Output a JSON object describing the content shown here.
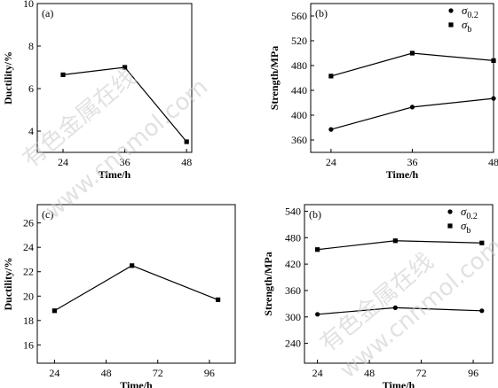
{
  "watermark": {
    "lines": [
      "有色金属在线",
      "www.cnnmol.com"
    ]
  },
  "chart_data": [
    {
      "panel_label": "(a)",
      "type": "line",
      "xlabel": "Time/h",
      "ylabel": "Ductility/%",
      "x": [
        24,
        36,
        48
      ],
      "xlim": [
        19,
        49
      ],
      "ylim": [
        3,
        10
      ],
      "xticks": [
        24,
        36,
        48
      ],
      "yticks": [
        4,
        6,
        8,
        10
      ],
      "legend": null,
      "series": [
        {
          "name": "",
          "marker": "square",
          "values": [
            6.65,
            7.0,
            3.5
          ]
        }
      ]
    },
    {
      "panel_label": "(b)",
      "type": "line",
      "xlabel": "Time/h",
      "ylabel": "Strength/MPa",
      "x": [
        24,
        36,
        48
      ],
      "xlim": [
        21,
        48
      ],
      "ylim": [
        340,
        580
      ],
      "xticks": [
        24,
        36,
        48
      ],
      "yticks": [
        360,
        400,
        440,
        480,
        520,
        560
      ],
      "legend": {
        "position": "top-right",
        "entries": [
          {
            "sym": "σ",
            "sub": "0.2",
            "marker": "circle"
          },
          {
            "sym": "σ",
            "sub": "b",
            "marker": "square"
          }
        ]
      },
      "series": [
        {
          "name": "σ0.2",
          "marker": "circle",
          "values": [
            377,
            413,
            427
          ]
        },
        {
          "name": "σb",
          "marker": "square",
          "values": [
            463,
            500,
            488
          ]
        }
      ]
    },
    {
      "panel_label": "(c)",
      "type": "line",
      "xlabel": "Time/h",
      "ylabel": "Ductility/%",
      "x": [
        24,
        60,
        100
      ],
      "xlim": [
        16,
        108
      ],
      "ylim": [
        14.5,
        27.5
      ],
      "xticks": [
        24,
        48,
        72,
        96
      ],
      "yticks": [
        16,
        18,
        20,
        22,
        24,
        26
      ],
      "legend": null,
      "series": [
        {
          "name": "",
          "marker": "square",
          "values": [
            18.8,
            22.5,
            19.7
          ]
        }
      ]
    },
    {
      "panel_label": "(b)",
      "type": "line",
      "xlabel": "Time/h",
      "ylabel": "Strength/MPa",
      "x": [
        24,
        60,
        100
      ],
      "xlim": [
        18,
        105
      ],
      "ylim": [
        195,
        555
      ],
      "xticks": [
        24,
        48,
        72,
        96
      ],
      "yticks": [
        240,
        300,
        360,
        420,
        480,
        540
      ],
      "legend": {
        "position": "top-right",
        "entries": [
          {
            "sym": "σ",
            "sub": "0.2",
            "marker": "circle"
          },
          {
            "sym": "σ",
            "sub": "b",
            "marker": "square"
          }
        ]
      },
      "series": [
        {
          "name": "σ0.2",
          "marker": "circle",
          "values": [
            306,
            321,
            314
          ]
        },
        {
          "name": "σb",
          "marker": "square",
          "values": [
            453,
            473,
            468
          ]
        }
      ]
    }
  ]
}
